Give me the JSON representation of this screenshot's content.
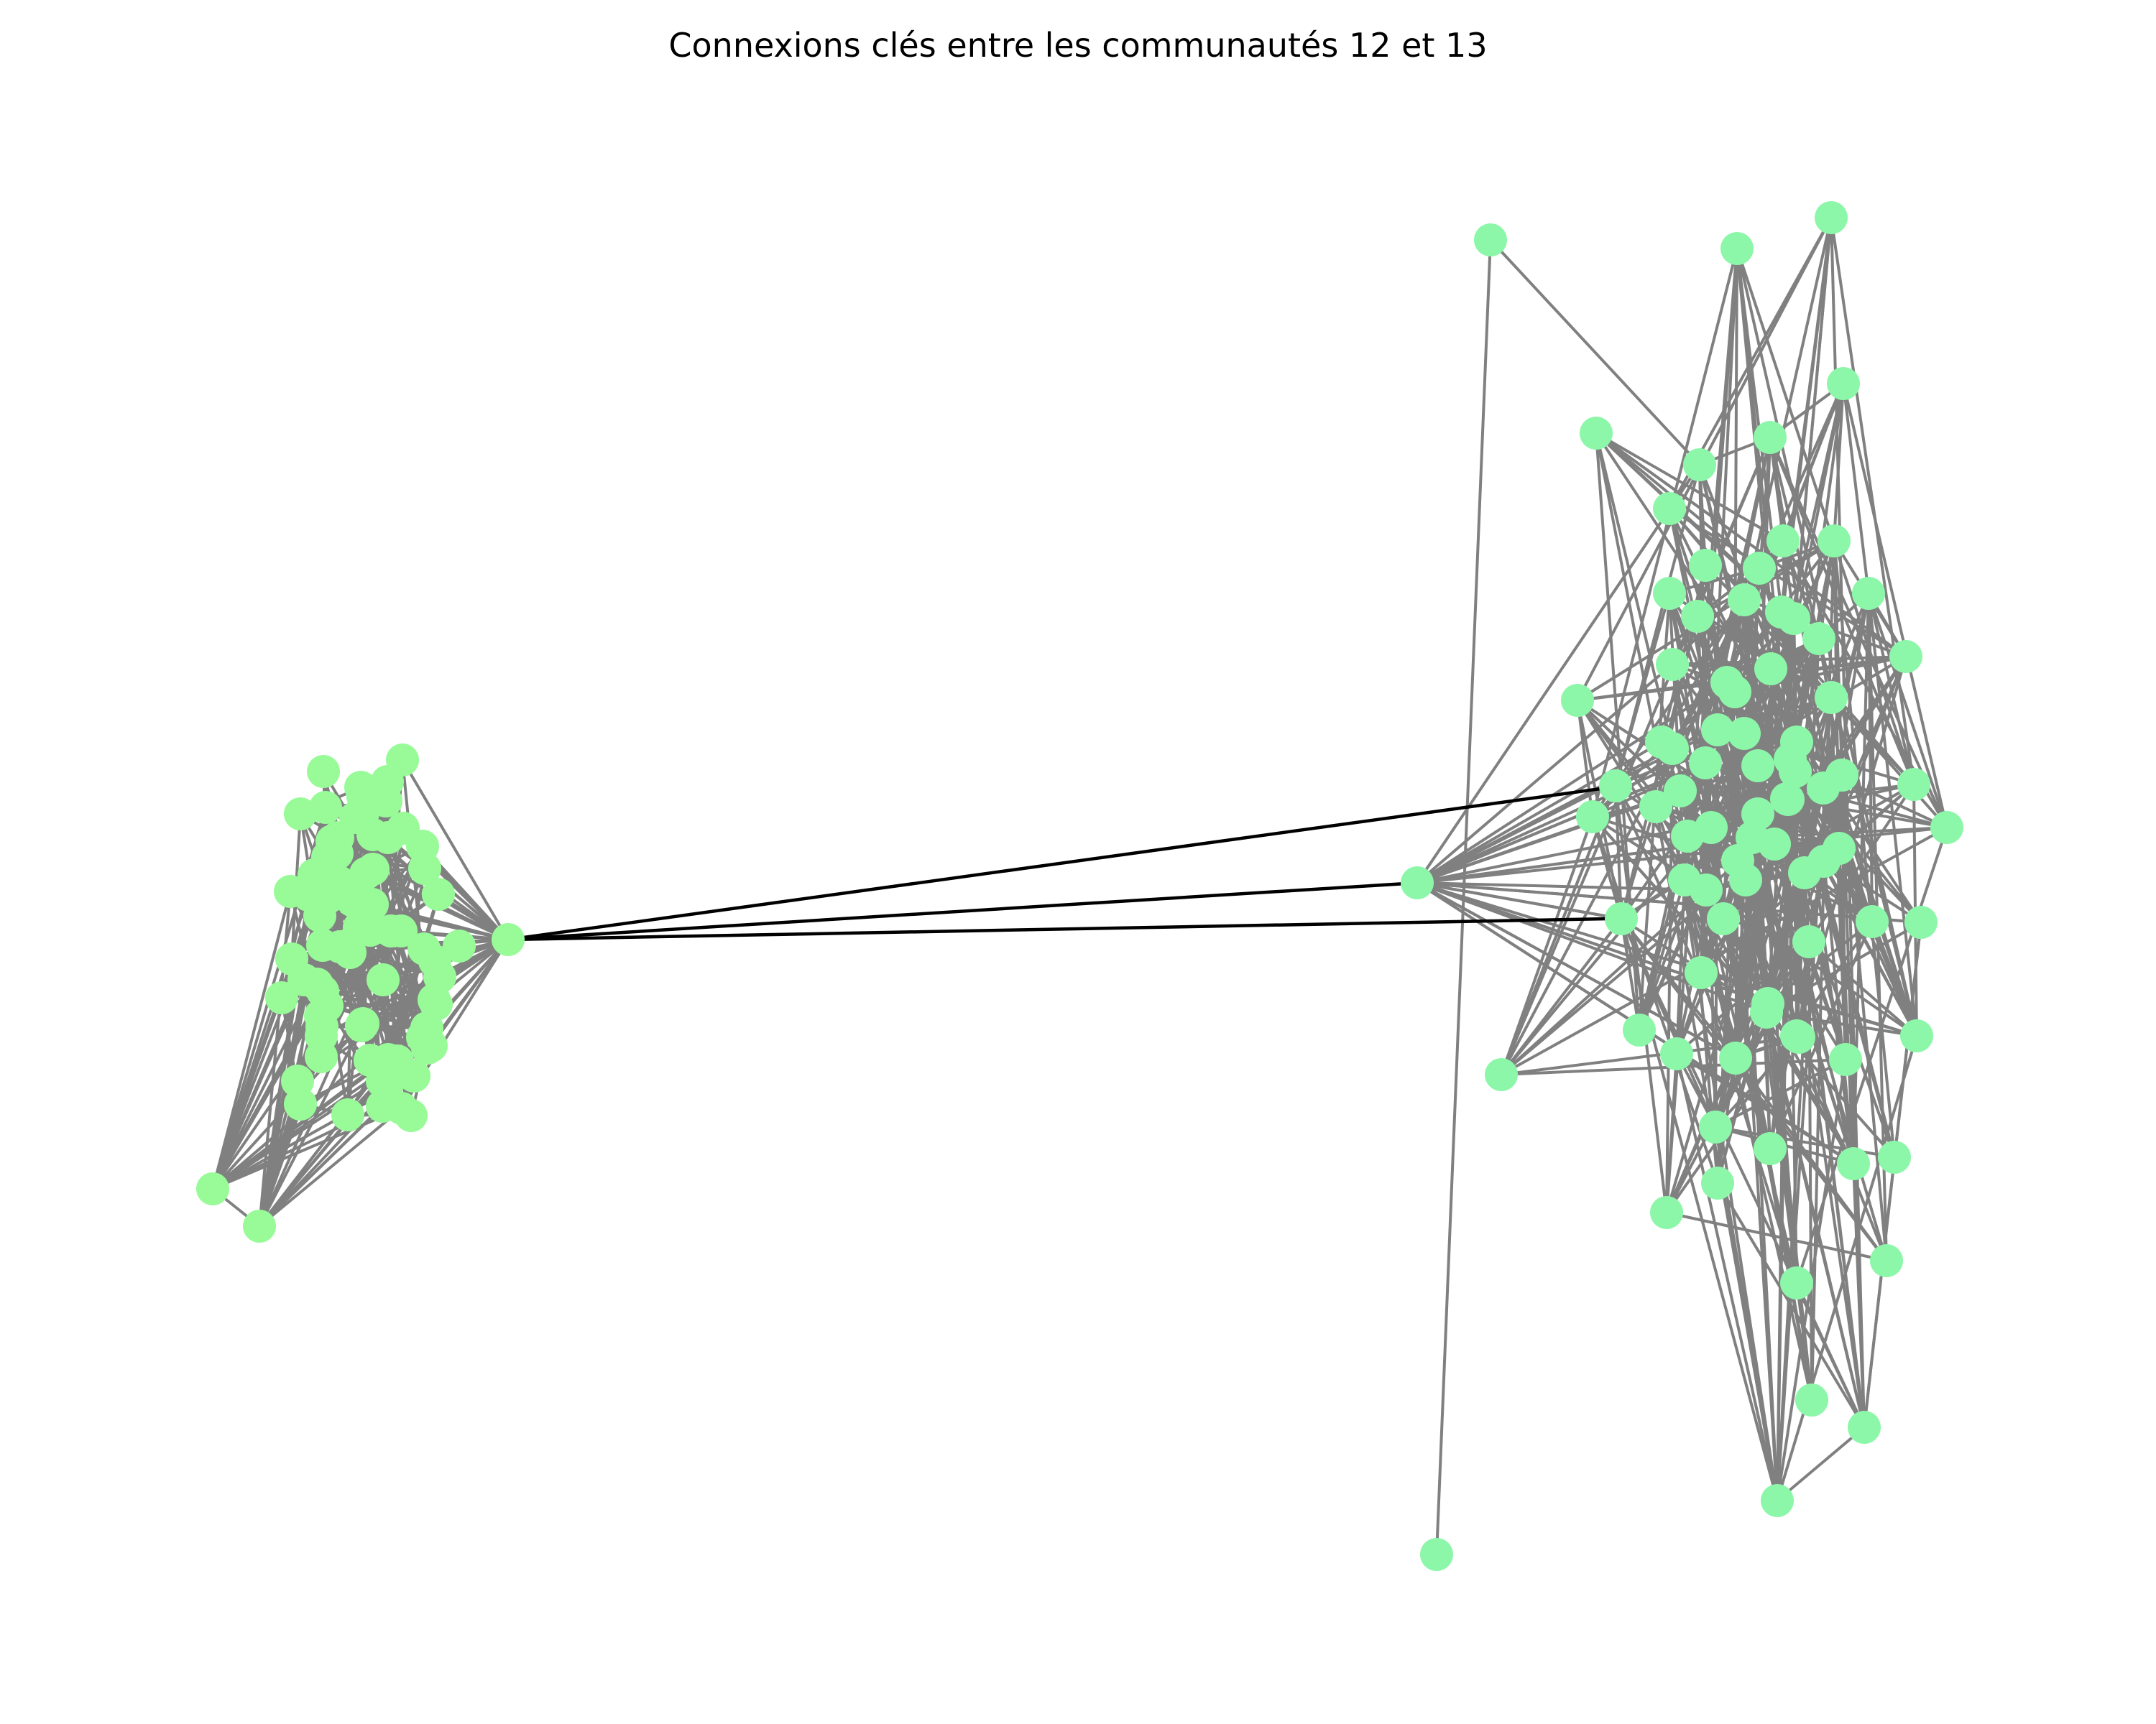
{
  "title": "Connexions clés entre les communautés 12 et 13",
  "colors": {
    "community_12_node": "#98fb98",
    "community_13_node": "#8df7a9",
    "intra_edge": "#808080",
    "bridge_edge": "#000000"
  },
  "communities": [
    {
      "id": "12",
      "node_count": 80
    },
    {
      "id": "13",
      "node_count": 86
    }
  ],
  "bridge_edges": 3
}
